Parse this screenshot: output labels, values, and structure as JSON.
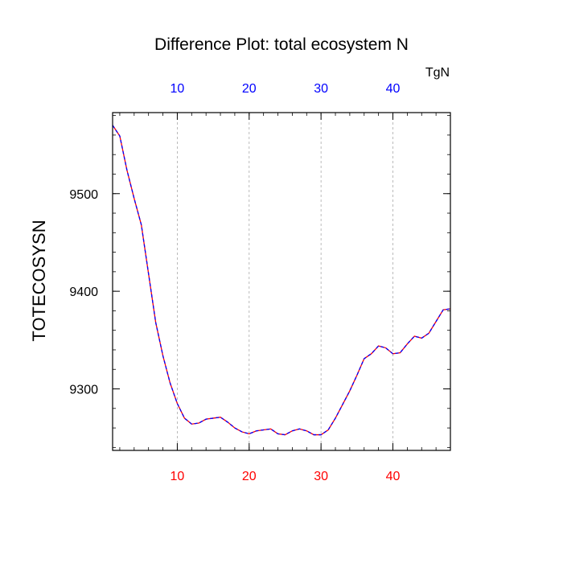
{
  "chart_data": {
    "type": "line",
    "title": "Difference Plot: total ecosystem N",
    "units": "TgN",
    "ylabel": "TOTECOSYSN",
    "xlabel": "",
    "xlim": [
      1,
      48
    ],
    "ylim": [
      9237,
      9583
    ],
    "x_ticks": [
      10,
      20,
      30,
      40
    ],
    "y_ticks": [
      9300,
      9400,
      9500
    ],
    "y_minor_step": 20,
    "x_minor_step": 2,
    "x_gridlines": true,
    "colors": {
      "bottom_tick_labels": "#ff0000",
      "top_tick_labels": "#0000ff",
      "series_a": "#ff0000",
      "series_b": "#0000ff",
      "gridlines": "#aaaaaa"
    },
    "x": [
      1,
      2,
      3,
      4,
      5,
      6,
      7,
      8,
      9,
      10,
      11,
      12,
      13,
      14,
      15,
      16,
      17,
      18,
      19,
      20,
      21,
      22,
      23,
      24,
      25,
      26,
      27,
      28,
      29,
      30,
      31,
      32,
      33,
      34,
      35,
      36,
      37,
      38,
      39,
      40,
      41,
      42,
      43,
      44,
      45,
      46,
      47,
      48
    ],
    "series": [
      {
        "values": [
          9570,
          9559,
          9524,
          9495,
          9468,
          9418,
          9368,
          9334,
          9306,
          9285,
          9270,
          9264,
          9265,
          9269,
          9270,
          9271,
          9266,
          9260,
          9256,
          9254,
          9257,
          9258,
          9259,
          9254,
          9253,
          9257,
          9259,
          9257,
          9253,
          9253,
          9258,
          9270,
          9284,
          9298,
          9314,
          9331,
          9336,
          9344,
          9342,
          9336,
          9337,
          9346,
          9354,
          9352,
          9357,
          9369,
          9381,
          9382
        ]
      },
      {
        "values": [
          9570,
          9559,
          9524,
          9495,
          9468,
          9418,
          9368,
          9334,
          9306,
          9285,
          9270,
          9264,
          9265,
          9269,
          9270,
          9271,
          9266,
          9260,
          9256,
          9254,
          9257,
          9258,
          9259,
          9254,
          9253,
          9257,
          9259,
          9257,
          9253,
          9253,
          9258,
          9270,
          9284,
          9298,
          9314,
          9331,
          9336,
          9344,
          9342,
          9336,
          9337,
          9346,
          9354,
          9352,
          9357,
          9369,
          9381,
          9382
        ]
      }
    ]
  }
}
